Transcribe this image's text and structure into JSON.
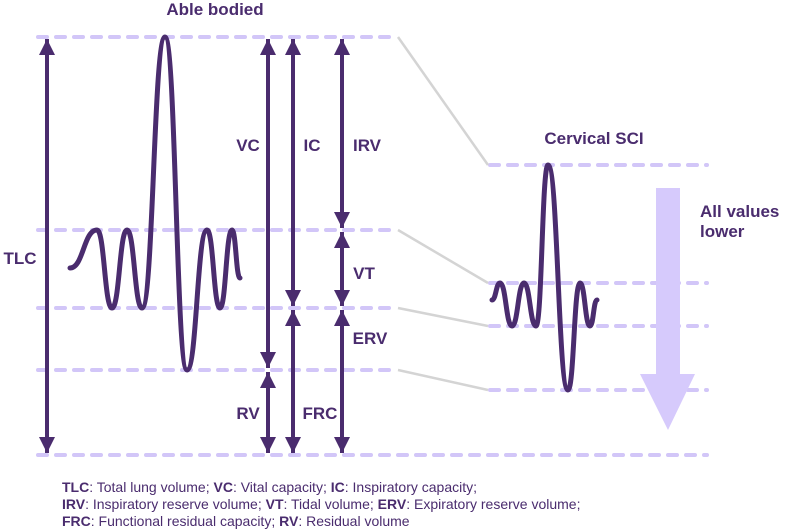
{
  "titles": {
    "able_bodied": "Able bodied",
    "cervical_sci": "Cervical SCI",
    "all_values_line1": "All values",
    "all_values_line2": "lower"
  },
  "labels": {
    "tlc": "TLC",
    "vc": "VC",
    "ic": "IC",
    "irv": "IRV",
    "vt": "VT",
    "erv": "ERV",
    "rv": "RV",
    "frc": "FRC"
  },
  "legend": [
    [
      {
        "abbr": "TLC",
        "text": ": Total lung volume; "
      },
      {
        "abbr": "VC",
        "text": ": Vital capacity; "
      },
      {
        "abbr": "IC",
        "text": ": Inspiratory capacity;"
      }
    ],
    [
      {
        "abbr": "IRV",
        "text": ": Inspiratory reserve volume; "
      },
      {
        "abbr": "VT",
        "text": ": Tidal volume; "
      },
      {
        "abbr": "ERV",
        "text": ": Expiratory reserve volume;"
      }
    ],
    [
      {
        "abbr": "FRC",
        "text": ": Functional residual capacity; "
      },
      {
        "abbr": "RV",
        "text": ": Residual volume"
      }
    ]
  ],
  "colors": {
    "primary": "#4a2c6e",
    "dash": "#d2c6f8",
    "arrow": "#d6cafc",
    "connector": "#d4d4d4"
  }
}
